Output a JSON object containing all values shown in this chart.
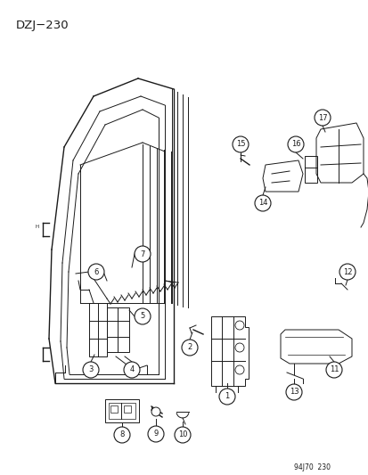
{
  "title": "DZJ−230",
  "footer": "94J70  230",
  "bg_color": "#ffffff",
  "line_color": "#1a1a1a",
  "fig_width": 4.14,
  "fig_height": 5.33,
  "dpi": 100
}
